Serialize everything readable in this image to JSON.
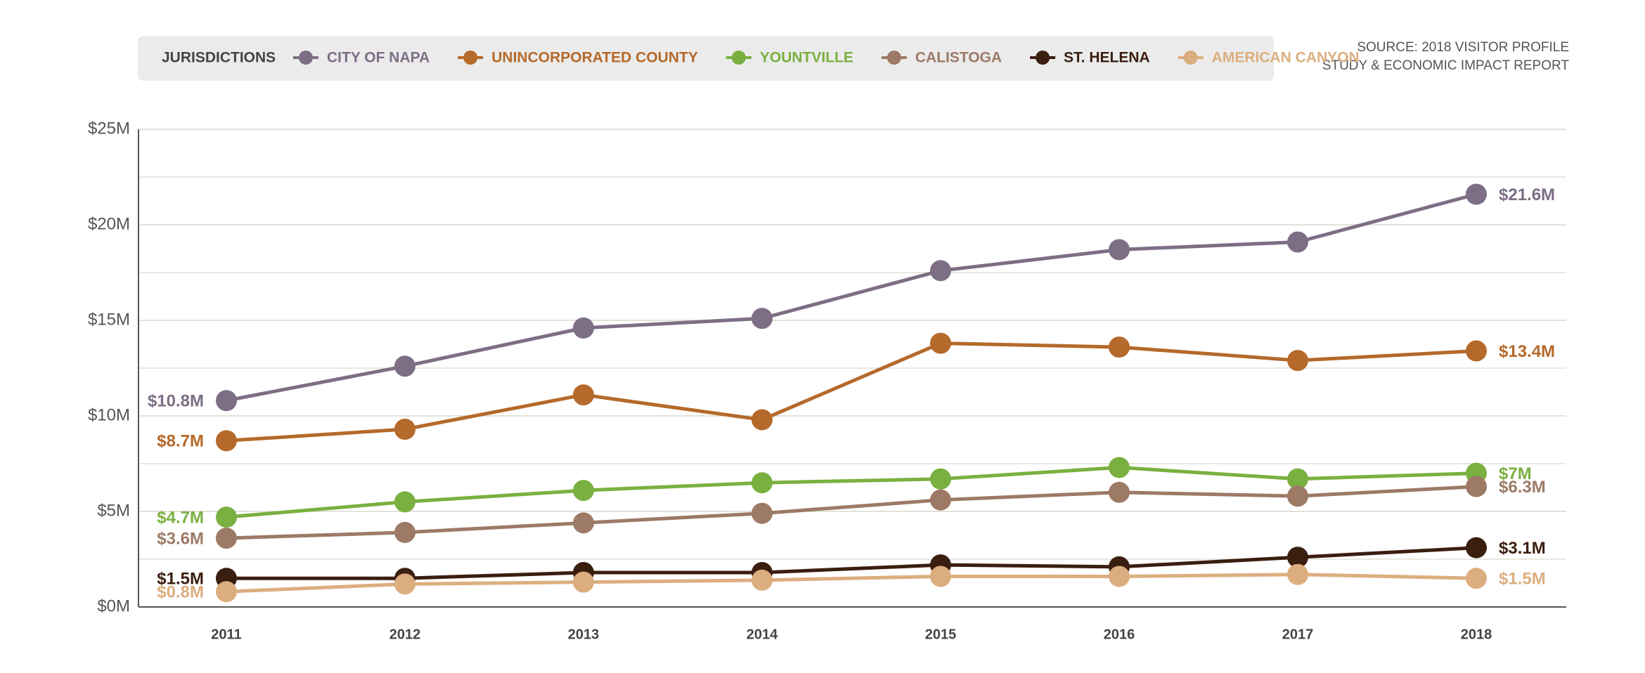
{
  "chart_data": {
    "type": "line",
    "legend_title": "JURISDICTIONS",
    "source": [
      "SOURCE: 2018 VISITOR PROFILE",
      "STUDY & ECONOMIC IMPACT REPORT"
    ],
    "categories": [
      "2011",
      "2012",
      "2013",
      "2014",
      "2015",
      "2016",
      "2017",
      "2018"
    ],
    "series": [
      {
        "name": "CITY OF NAPA",
        "color": "#7d6e85",
        "values": [
          10.8,
          12.6,
          14.6,
          15.1,
          17.6,
          18.7,
          19.1,
          21.6
        ],
        "value_labels": [
          "$10.8M",
          null,
          null,
          null,
          null,
          null,
          null,
          "$21.6M"
        ]
      },
      {
        "name": "UNINCORPORATED COUNTY",
        "color": "#b5692a",
        "values": [
          8.7,
          9.3,
          11.1,
          9.8,
          13.8,
          13.6,
          12.9,
          13.4
        ],
        "value_labels": [
          "$8.7M",
          null,
          null,
          null,
          null,
          null,
          null,
          "$13.4M"
        ]
      },
      {
        "name": "YOUNTVILLE",
        "color": "#7ab040",
        "values": [
          4.7,
          5.5,
          6.1,
          6.5,
          6.7,
          7.3,
          6.7,
          7
        ],
        "value_labels": [
          "$4.7M",
          null,
          null,
          null,
          null,
          null,
          null,
          "$7M"
        ]
      },
      {
        "name": "CALISTOGA",
        "color": "#9c7a66",
        "values": [
          3.6,
          3.9,
          4.4,
          4.9,
          5.6,
          6.0,
          5.8,
          6.3
        ],
        "value_labels": [
          "$3.6M",
          null,
          null,
          null,
          null,
          null,
          null,
          "$6.3M"
        ]
      },
      {
        "name": "ST. HELENA",
        "color": "#3a1e10",
        "values": [
          1.5,
          1.5,
          1.8,
          1.8,
          2.2,
          2.1,
          2.6,
          3.1
        ],
        "value_labels": [
          "$1.5M",
          null,
          null,
          null,
          null,
          null,
          null,
          "$3.1M"
        ]
      },
      {
        "name": "AMERICAN CANYON",
        "color": "#dcae7f",
        "values": [
          0.8,
          1.2,
          1.3,
          1.4,
          1.6,
          1.6,
          1.7,
          1.5
        ],
        "value_labels": [
          "$0.8M",
          null,
          null,
          null,
          null,
          null,
          null,
          "$1.5M"
        ]
      }
    ],
    "ylim": [
      0,
      25
    ],
    "yticks": [
      {
        "value": 0,
        "label": "$0M"
      },
      {
        "value": 5,
        "label": "$5M"
      },
      {
        "value": 10,
        "label": "$10M"
      },
      {
        "value": 15,
        "label": "$15M"
      },
      {
        "value": 20,
        "label": "$20M"
      },
      {
        "value": 25,
        "label": "$25M"
      }
    ],
    "minor_yticks": [
      2.5,
      7.5,
      12.5,
      17.5,
      22.5
    ],
    "grid": true
  }
}
